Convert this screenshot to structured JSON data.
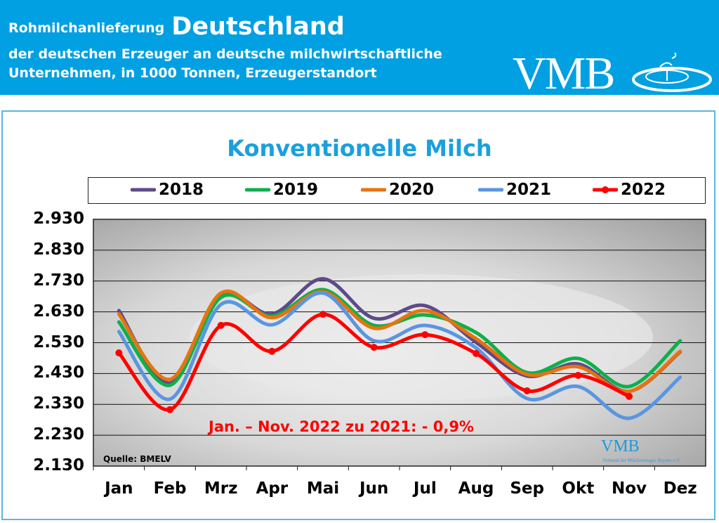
{
  "header": {
    "line1_prefix": "Rohmilchanlieferung",
    "line1_highlight": "Deutschland",
    "line2": "der deutschen Erzeuger an deutsche milchwirtschaftliche",
    "line3": "Unternehmen, in 1000 Tonnen, Erzeugerstandort",
    "logo_text": "VMB"
  },
  "colors": {
    "header_bg": "#00a0e2",
    "title": "#1aa0dd"
  },
  "chart_data": {
    "type": "line",
    "title": "Konventionelle Milch",
    "categories": [
      "Jan",
      "Feb",
      "Mrz",
      "Apr",
      "Mai",
      "Jun",
      "Jul",
      "Aug",
      "Sep",
      "Okt",
      "Nov",
      "Dez"
    ],
    "ylim": [
      2130,
      2930
    ],
    "yticks": [
      "2.930",
      "2.830",
      "2.730",
      "2.630",
      "2.530",
      "2.430",
      "2.330",
      "2.230",
      "2.130"
    ],
    "grid": true,
    "legend_position": "top",
    "series": [
      {
        "name": "2018",
        "color": "#5e4a8a",
        "markers": false,
        "values": [
          2634,
          2399,
          2684,
          2623,
          2737,
          2609,
          2650,
          2531,
          2422,
          2461,
          2372,
          2500
        ]
      },
      {
        "name": "2019",
        "color": "#0db04b",
        "markers": false,
        "values": [
          2597,
          2392,
          2677,
          2616,
          2702,
          2586,
          2620,
          2563,
          2433,
          2479,
          2388,
          2536
        ]
      },
      {
        "name": "2020",
        "color": "#e8730e",
        "markers": false,
        "values": [
          2623,
          2411,
          2691,
          2611,
          2695,
          2577,
          2634,
          2543,
          2427,
          2452,
          2372,
          2502
        ]
      },
      {
        "name": "2021",
        "color": "#5a96e0",
        "markers": false,
        "values": [
          2566,
          2347,
          2654,
          2588,
          2691,
          2536,
          2586,
          2513,
          2349,
          2388,
          2285,
          2418
        ]
      },
      {
        "name": "2022",
        "color": "#ff0000",
        "markers": true,
        "values": [
          2497,
          2313,
          2586,
          2502,
          2622,
          2515,
          2556,
          2495,
          2374,
          2424,
          2356,
          null
        ]
      }
    ],
    "annotation": "Jan. – Nov. 2022 zu 2021: - 0,9%",
    "source": "Quelle: BMELV",
    "watermark": "VMB",
    "watermark_subtitle": "Verband der Milcherzeuger Bayern e.V."
  }
}
